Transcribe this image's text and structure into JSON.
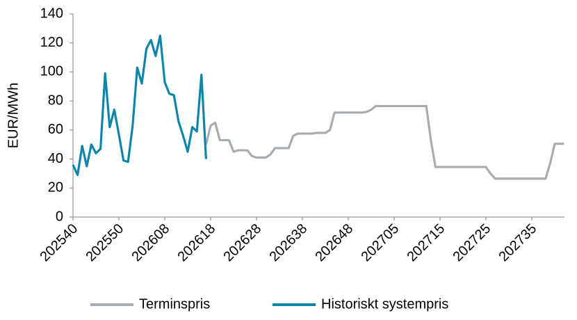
{
  "chart_data": {
    "type": "line",
    "y_label": "EUR/MWh",
    "categories": [
      "202540",
      null,
      null,
      null,
      null,
      null,
      null,
      null,
      null,
      null,
      "202550",
      null,
      null,
      null,
      null,
      null,
      null,
      null,
      null,
      null,
      "202608",
      null,
      null,
      null,
      null,
      null,
      null,
      null,
      null,
      null,
      "202618",
      null,
      null,
      null,
      null,
      null,
      null,
      null,
      null,
      null,
      "202628",
      null,
      null,
      null,
      null,
      null,
      null,
      null,
      null,
      null,
      "202638",
      null,
      null,
      null,
      null,
      null,
      null,
      null,
      null,
      null,
      "202648",
      null,
      null,
      null,
      null,
      null,
      null,
      null,
      null,
      null,
      "202705",
      null,
      null,
      null,
      null,
      null,
      null,
      null,
      null,
      null,
      "202715",
      null,
      null,
      null,
      null,
      null,
      null,
      null,
      null,
      null,
      "202725",
      null,
      null,
      null,
      null,
      null,
      null,
      null,
      null,
      null,
      "202735",
      null,
      null,
      null,
      null,
      null,
      null,
      null
    ],
    "series": [
      {
        "name": "Terminspris",
        "color": "#a7acb0",
        "values": [
          null,
          null,
          null,
          null,
          null,
          null,
          null,
          null,
          null,
          null,
          null,
          null,
          null,
          null,
          null,
          null,
          null,
          null,
          null,
          null,
          null,
          null,
          null,
          null,
          null,
          null,
          null,
          null,
          null,
          50,
          63,
          65,
          53,
          53,
          53,
          45,
          46,
          46,
          46,
          42,
          41,
          41,
          41,
          43,
          47.5,
          47.5,
          47.5,
          47.5,
          56,
          57.5,
          57.5,
          57.5,
          57.5,
          58,
          58,
          58,
          60,
          72,
          72,
          72,
          72,
          72,
          72,
          72,
          72.5,
          74,
          76.5,
          76.5,
          76.5,
          76.5,
          76.5,
          76.5,
          76.5,
          76.5,
          76.5,
          76.5,
          76.5,
          76.5,
          53,
          34.5,
          34.5,
          34.5,
          34.5,
          34.5,
          34.5,
          34.5,
          34.5,
          34.5,
          34.5,
          34.5,
          34.5,
          30,
          26.5,
          26.5,
          26.5,
          26.5,
          26.5,
          26.5,
          26.5,
          26.5,
          26.5,
          26.5,
          26.5,
          26.5,
          37,
          50.5,
          50.5,
          50.5
        ]
      },
      {
        "name": "Historiskt systempris",
        "color": "#0f86a9",
        "values": [
          36,
          29,
          49,
          35,
          50,
          44,
          47,
          99,
          62,
          74,
          57,
          39,
          38,
          63,
          103,
          92,
          116,
          122,
          111,
          125,
          93,
          85,
          84,
          66,
          56,
          45,
          62,
          59,
          98,
          40,
          null,
          null,
          null,
          null,
          null,
          null,
          null,
          null,
          null,
          null,
          null,
          null,
          null,
          null,
          null,
          null,
          null,
          null,
          null,
          null,
          null,
          null,
          null,
          null,
          null,
          null,
          null,
          null,
          null,
          null,
          null,
          null,
          null,
          null,
          null,
          null,
          null,
          null,
          null,
          null,
          null,
          null,
          null,
          null,
          null,
          null,
          null,
          null,
          null,
          null,
          null,
          null,
          null,
          null,
          null,
          null,
          null,
          null,
          null,
          null,
          null,
          null,
          null,
          null,
          null,
          null,
          null,
          null,
          null,
          null,
          null,
          null,
          null,
          null,
          null,
          null,
          null,
          null
        ]
      }
    ],
    "ylim": [
      0,
      140
    ],
    "yticks": [
      0,
      20,
      40,
      60,
      80,
      100,
      120,
      140
    ],
    "grid": false,
    "legend": "bottom"
  }
}
